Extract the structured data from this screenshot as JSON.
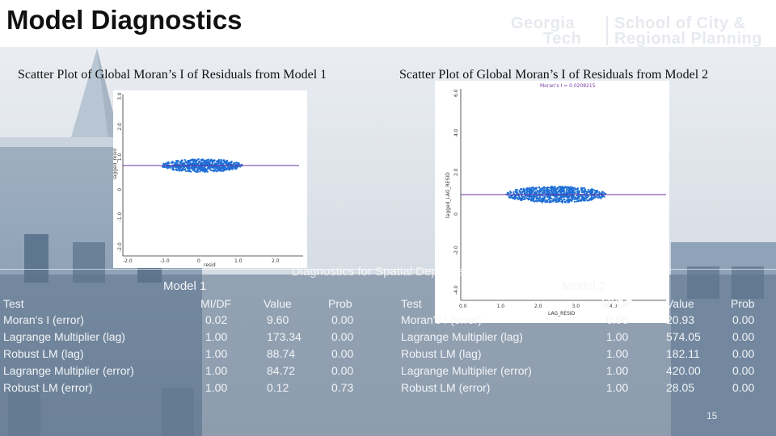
{
  "page_title": "Model Diagnostics",
  "logo": {
    "left_top": "Georgia",
    "left_bottom": "Tech",
    "right_top": "School of City &",
    "right_bottom": "Regional Planning"
  },
  "panels": [
    {
      "caption": "Scatter Plot of Global Moran’s I of Residuals from Model 1",
      "y_axis_label": "lagged_resid",
      "x_axis_label": "resid",
      "y_ticks": [
        "3.0",
        "2.0",
        "1.0",
        "0",
        "-1.0",
        "-2.0"
      ],
      "x_ticks": [
        "-2.0",
        "-1.0",
        "0",
        "1.0",
        "2.0"
      ]
    },
    {
      "caption": "Scatter Plot of Global Moran’s I of Residuals from Model 2",
      "moran_label": "Moran's I = 0.0208215",
      "y_axis_label": "lagged_LAG_RESID",
      "x_axis_label": "LAG_RESID",
      "y_ticks": [
        "6.0",
        "4.0",
        "2.0",
        "0",
        "-2.0",
        "-4.0"
      ],
      "x_ticks": [
        "0.0",
        "1.0",
        "2.0",
        "3.0",
        "4.0"
      ]
    }
  ],
  "diagnostics_title": "Diagnostics for Spatial Dependence",
  "tables": [
    {
      "model_label": "Model 1",
      "headers": [
        "Test",
        "MI/DF",
        "Value",
        "Prob"
      ],
      "rows": [
        [
          "Moran's I (error)",
          "0.02",
          "9.60",
          "0.00"
        ],
        [
          "Lagrange Multiplier (lag)",
          "1.00",
          "173.34",
          "0.00"
        ],
        [
          "Robust LM (lag)",
          "1.00",
          "88.74",
          "0.00"
        ],
        [
          "Lagrange Multiplier (error)",
          "1.00",
          "84.72",
          "0.00"
        ],
        [
          "Robust LM (error)",
          "1.00",
          "0.12",
          "0.73"
        ]
      ]
    },
    {
      "model_label": "Model 2",
      "headers": [
        "Test",
        "MI/DF",
        "Value",
        "Prob"
      ],
      "rows": [
        [
          "Moran's I (error)",
          "0.06",
          "20.93",
          "0.00"
        ],
        [
          "Lagrange Multiplier (lag)",
          "1.00",
          "574.05",
          "0.00"
        ],
        [
          "Robust LM (lag)",
          "1.00",
          "182.11",
          "0.00"
        ],
        [
          "Lagrange Multiplier (error)",
          "1.00",
          "420.00",
          "0.00"
        ],
        [
          "Robust LM (error)",
          "1.00",
          "28.05",
          "0.00"
        ]
      ]
    }
  ],
  "page_number": "15",
  "colors": {
    "points": "#1e6fd6",
    "regression_line": "#6a2fa0",
    "table_text": "#f2f4f7"
  }
}
